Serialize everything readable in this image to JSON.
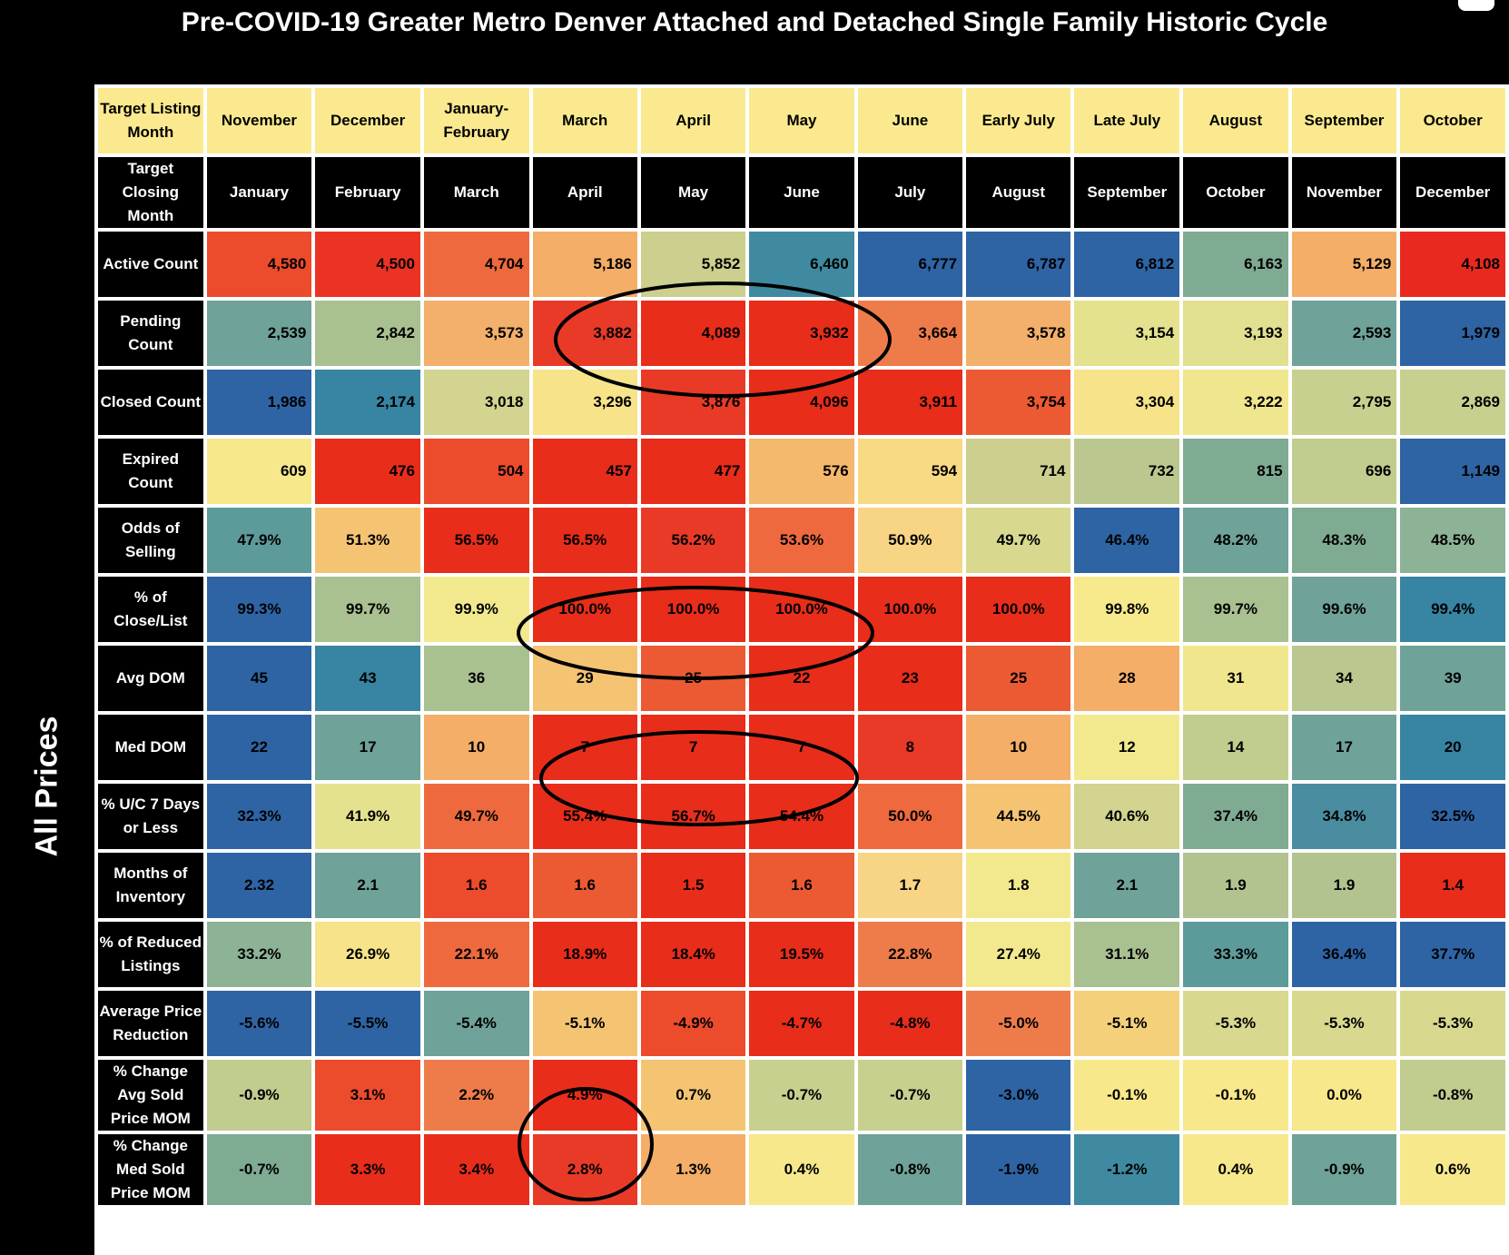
{
  "title": "Pre-COVID-19 Greater Metro Denver Attached and Detached Single Family Historic Cycle",
  "side_label": "All Prices",
  "chart_data": {
    "type": "heatmap",
    "title": "Pre-COVID-19 Greater Metro Denver Attached and Detached Single Family Historic Cycle",
    "y_group_label": "All Prices",
    "listing_label": "Target Listing Month",
    "closing_label": "Target Closing Month",
    "listing_months": [
      "November",
      "December",
      "January-February",
      "March",
      "April",
      "May",
      "June",
      "Early July",
      "Late July",
      "August",
      "September",
      "October"
    ],
    "closing_months": [
      "January",
      "February",
      "March",
      "April",
      "May",
      "June",
      "July",
      "August",
      "September",
      "October",
      "November",
      "December"
    ],
    "rows": [
      {
        "label": "Active Count",
        "align": "num",
        "values": [
          "4,580",
          "4,500",
          "4,704",
          "5,186",
          "5,852",
          "6,460",
          "6,777",
          "6,787",
          "6,812",
          "6,163",
          "5,129",
          "4,108"
        ],
        "colors": [
          "#ec4b2c",
          "#eb3323",
          "#ee6a3e",
          "#f4ae68",
          "#cccf8e",
          "#3f8aa1",
          "#2e64a4",
          "#2e64a4",
          "#2e64a4",
          "#7fab93",
          "#f4ae68",
          "#e9291f"
        ]
      },
      {
        "label": "Pending Count",
        "align": "num",
        "values": [
          "2,539",
          "2,842",
          "3,573",
          "3,882",
          "4,089",
          "3,932",
          "3,664",
          "3,578",
          "3,154",
          "3,193",
          "2,593",
          "1,979"
        ],
        "colors": [
          "#6fa298",
          "#a9c091",
          "#f3b06b",
          "#e93a28",
          "#e82d1b",
          "#e82d1b",
          "#ee7c4b",
          "#f3b06b",
          "#e4e28f",
          "#e1df90",
          "#6fa298",
          "#2e64a4"
        ]
      },
      {
        "label": "Closed Count",
        "align": "num",
        "values": [
          "1,986",
          "2,174",
          "3,018",
          "3,296",
          "3,876",
          "4,096",
          "3,911",
          "3,754",
          "3,304",
          "3,222",
          "2,795",
          "2,869"
        ],
        "colors": [
          "#2e64a4",
          "#3784a3",
          "#d2d48f",
          "#f7e38a",
          "#e93a28",
          "#e82d1b",
          "#e82d1b",
          "#ec5a34",
          "#f7e38a",
          "#f0e68e",
          "#c8d08f",
          "#c8d08f"
        ]
      },
      {
        "label": "Expired Count",
        "align": "num",
        "values": [
          "609",
          "476",
          "504",
          "457",
          "477",
          "576",
          "594",
          "714",
          "732",
          "815",
          "696",
          "1,149"
        ],
        "colors": [
          "#f7e88c",
          "#e82d1b",
          "#ec4b2c",
          "#e82d1b",
          "#e82d1b",
          "#f5b96d",
          "#f8da84",
          "#cccf8e",
          "#bac88f",
          "#7fab93",
          "#c1cc8f",
          "#2e64a4"
        ]
      },
      {
        "label": "Odds of Selling",
        "align": "pct",
        "values": [
          "47.9%",
          "51.3%",
          "56.5%",
          "56.5%",
          "56.2%",
          "53.6%",
          "50.9%",
          "49.7%",
          "46.4%",
          "48.2%",
          "48.3%",
          "48.5%"
        ],
        "colors": [
          "#5d9b9b",
          "#f5c473",
          "#e82d1b",
          "#e82d1b",
          "#e93a28",
          "#ee6a3e",
          "#f7d585",
          "#d8d98f",
          "#2e64a4",
          "#6fa298",
          "#7fab93",
          "#8cb395"
        ]
      },
      {
        "label": "% of Close/List",
        "align": "pct",
        "values": [
          "99.3%",
          "99.7%",
          "99.9%",
          "100.0%",
          "100.0%",
          "100.0%",
          "100.0%",
          "100.0%",
          "99.8%",
          "99.7%",
          "99.6%",
          "99.4%"
        ],
        "colors": [
          "#2e64a4",
          "#a9c091",
          "#f2e98f",
          "#e82d1b",
          "#e82d1b",
          "#e82d1b",
          "#e82d1b",
          "#e82d1b",
          "#f7ea8c",
          "#a9c091",
          "#6fa298",
          "#3784a3"
        ]
      },
      {
        "label": "Avg DOM",
        "align": "pct",
        "values": [
          "45",
          "43",
          "36",
          "29",
          "25",
          "22",
          "23",
          "25",
          "28",
          "31",
          "34",
          "39"
        ],
        "colors": [
          "#2e64a4",
          "#3784a3",
          "#a9c091",
          "#f5c473",
          "#ec5a34",
          "#e82d1b",
          "#e82d1b",
          "#ec5a34",
          "#f4ae68",
          "#f0e68e",
          "#bac88f",
          "#6fa298"
        ]
      },
      {
        "label": "Med DOM",
        "align": "pct",
        "values": [
          "22",
          "17",
          "10",
          "7",
          "7",
          "7",
          "8",
          "10",
          "12",
          "14",
          "17",
          "20"
        ],
        "colors": [
          "#2e64a4",
          "#6fa298",
          "#f4ae68",
          "#e82d1b",
          "#e82d1b",
          "#e82d1b",
          "#e93a28",
          "#f4ae68",
          "#f2e98f",
          "#c1cc8f",
          "#6fa298",
          "#3784a3"
        ]
      },
      {
        "label": "% U/C 7 Days or Less",
        "align": "pct",
        "values": [
          "32.3%",
          "41.9%",
          "49.7%",
          "55.4%",
          "56.7%",
          "54.4%",
          "50.0%",
          "44.5%",
          "40.6%",
          "37.4%",
          "34.8%",
          "32.5%"
        ],
        "colors": [
          "#2e64a4",
          "#e4e28f",
          "#ee6a3e",
          "#e82d1b",
          "#e82d1b",
          "#e82d1b",
          "#ee6a3e",
          "#f5c473",
          "#d2d48f",
          "#7fab93",
          "#4a8da0",
          "#2e64a4"
        ]
      },
      {
        "label": "Months of Inventory",
        "align": "pct",
        "values": [
          "2.32",
          "2.1",
          "1.6",
          "1.6",
          "1.5",
          "1.6",
          "1.7",
          "1.8",
          "2.1",
          "1.9",
          "1.9",
          "1.4"
        ],
        "colors": [
          "#2e64a4",
          "#6fa298",
          "#ec4b2c",
          "#ec5a34",
          "#e82d1b",
          "#ec5a34",
          "#f7d585",
          "#f2e98f",
          "#6fa298",
          "#b2c38f",
          "#b2c38f",
          "#e82d1b"
        ]
      },
      {
        "label": "% of Reduced Listings",
        "align": "pct",
        "values": [
          "33.2%",
          "26.9%",
          "22.1%",
          "18.9%",
          "18.4%",
          "19.5%",
          "22.8%",
          "27.4%",
          "31.1%",
          "33.3%",
          "36.4%",
          "37.7%"
        ],
        "colors": [
          "#8cb395",
          "#f7e48a",
          "#ee6a3e",
          "#e82d1b",
          "#e82d1b",
          "#e82d1b",
          "#ee7c4b",
          "#f2e98f",
          "#a9c091",
          "#5d9b9b",
          "#2e64a4",
          "#2e64a4"
        ]
      },
      {
        "label": "Average Price Reduction",
        "align": "pct",
        "values": [
          "-5.6%",
          "-5.5%",
          "-5.4%",
          "-5.1%",
          "-4.9%",
          "-4.7%",
          "-4.8%",
          "-5.0%",
          "-5.1%",
          "-5.3%",
          "-5.3%",
          "-5.3%"
        ],
        "colors": [
          "#2e64a4",
          "#2e64a4",
          "#6fa298",
          "#f5c473",
          "#ec4b2c",
          "#e82d1b",
          "#e82d1b",
          "#ee7c4b",
          "#f5d07a",
          "#d8d98f",
          "#d8d98f",
          "#d8d98f"
        ]
      },
      {
        "label": "% Change Avg Sold Price MOM",
        "align": "pct",
        "values": [
          "-0.9%",
          "3.1%",
          "2.2%",
          "4.9%",
          "0.7%",
          "-0.7%",
          "-0.7%",
          "-3.0%",
          "-0.1%",
          "-0.1%",
          "0.0%",
          "-0.8%"
        ],
        "colors": [
          "#c1cc8f",
          "#ec4b2c",
          "#ee7c4b",
          "#e82d1b",
          "#f5c473",
          "#c8d08f",
          "#c8d08f",
          "#2e64a4",
          "#f7e88c",
          "#f7e88c",
          "#f7e88c",
          "#c1cc8f"
        ]
      },
      {
        "label": "% Change Med Sold Price MOM",
        "align": "pct",
        "values": [
          "-0.7%",
          "3.3%",
          "3.4%",
          "2.8%",
          "1.3%",
          "0.4%",
          "-0.8%",
          "-1.9%",
          "-1.2%",
          "0.4%",
          "-0.9%",
          "0.6%"
        ],
        "colors": [
          "#7fab93",
          "#e82d1b",
          "#e82d1b",
          "#e93a28",
          "#f4ae68",
          "#f7e88c",
          "#6fa298",
          "#2e64a4",
          "#3f8aa1",
          "#f7e88c",
          "#6fa298",
          "#f7e88c"
        ]
      }
    ]
  }
}
